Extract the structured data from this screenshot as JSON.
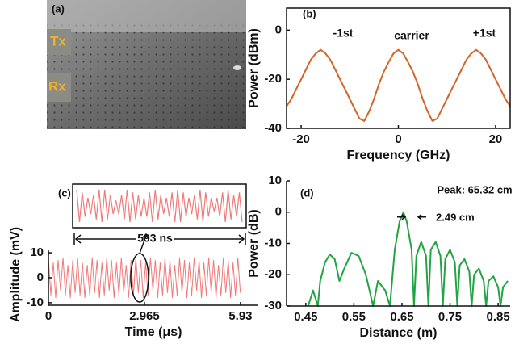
{
  "panel_a": {
    "label": "(a)",
    "tx": "Tx",
    "rx": "Rx"
  },
  "chart_data": [
    {
      "type": "line",
      "label": "(b)",
      "x_label": "Frequency (GHz)",
      "y_label": "Power (dBm)",
      "color": "#d2652a",
      "annotations": [
        "-1st",
        "carrier",
        "+1st"
      ],
      "box": true,
      "xlim": [
        -23,
        23
      ],
      "xticks": [
        -20,
        0,
        20
      ],
      "ylim": [
        -40,
        9
      ],
      "yticks": [
        0,
        -20,
        -40
      ],
      "x": [
        -23,
        -22,
        -21,
        -20,
        -19,
        -18,
        -17,
        -16,
        -15,
        -14,
        -13,
        -12,
        -11,
        -10,
        -9,
        -8,
        -7,
        -6,
        -5,
        -4,
        -3,
        -2,
        -1,
        0,
        1,
        2,
        3,
        4,
        5,
        6,
        7,
        8,
        9,
        10,
        11,
        12,
        13,
        14,
        15,
        16,
        17,
        18,
        19,
        20,
        21,
        22,
        23
      ],
      "values": [
        -31,
        -28,
        -24,
        -20,
        -16,
        -12,
        -9.5,
        -8,
        -9.5,
        -12,
        -16,
        -20,
        -24,
        -28,
        -32,
        -36,
        -37,
        -33,
        -28,
        -22,
        -17,
        -13,
        -9.5,
        -8,
        -9.5,
        -13,
        -17,
        -22,
        -28,
        -33,
        -37,
        -36,
        -32,
        -28,
        -24,
        -20,
        -16,
        -12,
        -9.5,
        -8,
        -9.5,
        -12,
        -16,
        -20,
        -24,
        -28,
        -31
      ]
    },
    {
      "type": "line",
      "label": "(c)",
      "x_label": "Time (μs)",
      "y_label": "Amplitude (mV)",
      "color": "#f07a7a",
      "annotations": [
        "593 ns"
      ],
      "box": false,
      "xlim": [
        0,
        6.48
      ],
      "xticks": [
        0,
        2.965,
        5.93
      ],
      "ylim": [
        -11,
        11
      ],
      "yticks": [
        10,
        0,
        -10
      ],
      "x": [
        0,
        0.075,
        0.15,
        0.225,
        0.3,
        0.375,
        0.45,
        0.525,
        0.6,
        0.675,
        0.75,
        0.825,
        0.9,
        0.975,
        1.05,
        1.125,
        1.2,
        1.275,
        1.35,
        1.425,
        1.5,
        1.575,
        1.65,
        1.725,
        1.8,
        1.875,
        1.95,
        2.025,
        2.1,
        2.175,
        2.25,
        2.325,
        2.4,
        2.475,
        2.55,
        2.625,
        2.7,
        2.775,
        2.85,
        2.925,
        3,
        3.075,
        3.15,
        3.225,
        3.3,
        3.375,
        3.45,
        3.525,
        3.6,
        3.675,
        3.75,
        3.825,
        3.9,
        3.975,
        4.05,
        4.125,
        4.2,
        4.275,
        4.35,
        4.425,
        4.5,
        4.575,
        4.65,
        4.725,
        4.8,
        4.875,
        4.95,
        5.025,
        5.1,
        5.175,
        5.25,
        5.325,
        5.4,
        5.475,
        5.55,
        5.625,
        5.7,
        5.775,
        5.85,
        5.925
      ],
      "values": [
        8,
        -7,
        6,
        -8,
        7,
        -5,
        8,
        -7,
        5,
        -8,
        7,
        -6,
        8,
        -7,
        6,
        -8,
        5,
        -7,
        8,
        -6,
        7,
        -8,
        6,
        -7,
        8,
        -5,
        7,
        -8,
        6,
        -7,
        8,
        -6,
        5,
        -8,
        7,
        -7,
        8,
        -6,
        7,
        -8,
        6,
        -7,
        8,
        -5,
        7,
        -8,
        6,
        -7,
        8,
        -6,
        7,
        -8,
        5,
        -7,
        8,
        -6,
        7,
        -8,
        6,
        -7,
        8,
        -5,
        7,
        -8,
        6,
        -7,
        8,
        -6,
        7,
        -8,
        5,
        -7,
        8,
        -6,
        7,
        -8,
        6,
        -7,
        8,
        -6
      ],
      "inset_values": [
        6,
        -6,
        5,
        -4,
        3,
        -3,
        4,
        -5,
        6,
        -6,
        6,
        -5,
        4,
        -3,
        2,
        -3,
        4,
        -5,
        6,
        -6,
        5,
        -5,
        4,
        -4,
        3,
        -4,
        5,
        -6,
        6,
        -5,
        4,
        -3,
        3,
        -4,
        5,
        -6,
        6,
        -6,
        5,
        -4,
        3,
        -3,
        4,
        -5,
        6,
        -6,
        5,
        -4,
        3,
        -2,
        3,
        -4,
        5,
        -6,
        6,
        -5,
        4,
        -4,
        5,
        -6
      ]
    },
    {
      "type": "line",
      "label": "(d)",
      "x_label": "Distance (m)",
      "y_label": "Power (dB)",
      "color": "#22a443",
      "annotations": [
        "Peak: 65.32 cm",
        "2.49 cm"
      ],
      "box": false,
      "xlim": [
        0.41,
        0.875
      ],
      "xticks": [
        0.45,
        0.55,
        0.65,
        0.75,
        0.85
      ],
      "ylim": [
        -30,
        10
      ],
      "yticks": [
        10,
        0,
        -10,
        -20,
        -30
      ],
      "x": [
        0.455,
        0.465,
        0.475,
        0.48,
        0.49,
        0.5,
        0.51,
        0.52,
        0.53,
        0.545,
        0.56,
        0.575,
        0.59,
        0.6,
        0.615,
        0.625,
        0.635,
        0.645,
        0.653,
        0.66,
        0.67,
        0.675,
        0.68,
        0.69,
        0.7,
        0.705,
        0.71,
        0.72,
        0.73,
        0.735,
        0.74,
        0.75,
        0.76,
        0.765,
        0.77,
        0.78,
        0.79,
        0.795,
        0.8,
        0.81,
        0.82,
        0.825,
        0.83,
        0.84,
        0.85,
        0.855,
        0.86,
        0.87
      ],
      "values": [
        -30,
        -25,
        -30,
        -22,
        -16,
        -13.5,
        -15,
        -22,
        -18,
        -13,
        -14,
        -20,
        -30,
        -22,
        -25,
        -30,
        -12,
        -3,
        0,
        -3,
        -12,
        -30,
        -14,
        -9.5,
        -14,
        -30,
        -12,
        -9.5,
        -14,
        -30,
        -15,
        -12,
        -16,
        -30,
        -17,
        -15,
        -19,
        -30,
        -20,
        -18,
        -22,
        -30,
        -22,
        -20.5,
        -24,
        -30,
        -24,
        -22
      ]
    }
  ]
}
